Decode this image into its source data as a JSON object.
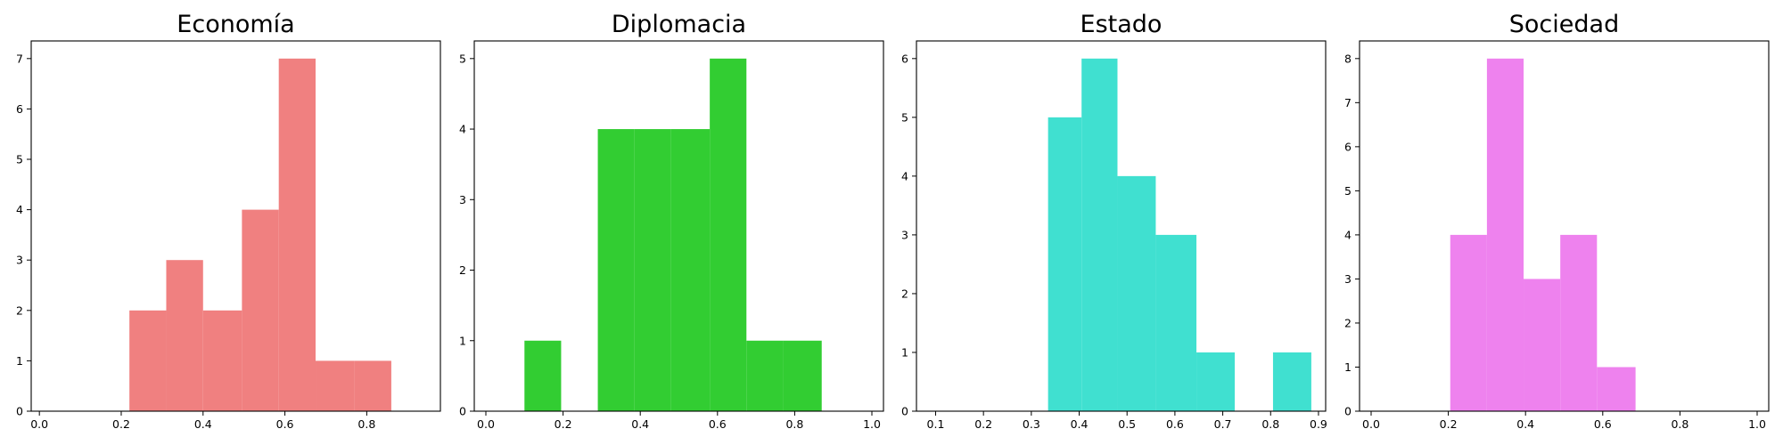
{
  "chart_data": [
    {
      "type": "bar",
      "title": "Economía",
      "color": "#F08080",
      "xlim": [
        -0.02,
        0.98
      ],
      "ylim": [
        0,
        7.35
      ],
      "xticks": [
        "0.0",
        "0.2",
        "0.4",
        "0.6",
        "0.8"
      ],
      "xtick_values": [
        0.0,
        0.2,
        0.4,
        0.6,
        0.8
      ],
      "yticks": [
        "0",
        "1",
        "2",
        "3",
        "4",
        "5",
        "6",
        "7"
      ],
      "ytick_values": [
        0,
        1,
        2,
        3,
        4,
        5,
        6,
        7
      ],
      "bins": [
        {
          "x0": 0.22,
          "x1": 0.31,
          "count": 2
        },
        {
          "x0": 0.31,
          "x1": 0.4,
          "count": 3
        },
        {
          "x0": 0.4,
          "x1": 0.495,
          "count": 2
        },
        {
          "x0": 0.495,
          "x1": 0.585,
          "count": 4
        },
        {
          "x0": 0.585,
          "x1": 0.675,
          "count": 7
        },
        {
          "x0": 0.675,
          "x1": 0.77,
          "count": 1
        },
        {
          "x0": 0.77,
          "x1": 0.86,
          "count": 1
        }
      ],
      "xlabel": "",
      "ylabel": ""
    },
    {
      "type": "bar",
      "title": "Diplomacia",
      "color": "#32CD32",
      "xlim": [
        -0.03,
        1.03
      ],
      "ylim": [
        0,
        5.25
      ],
      "xticks": [
        "0.0",
        "0.2",
        "0.4",
        "0.6",
        "0.8",
        "1.0"
      ],
      "xtick_values": [
        0.0,
        0.2,
        0.4,
        0.6,
        0.8,
        1.0
      ],
      "yticks": [
        "0",
        "1",
        "2",
        "3",
        "4",
        "5"
      ],
      "ytick_values": [
        0,
        1,
        2,
        3,
        4,
        5
      ],
      "bins": [
        {
          "x0": 0.1,
          "x1": 0.195,
          "count": 1
        },
        {
          "x0": 0.195,
          "x1": 0.29,
          "count": 0
        },
        {
          "x0": 0.29,
          "x1": 0.385,
          "count": 4
        },
        {
          "x0": 0.385,
          "x1": 0.48,
          "count": 4
        },
        {
          "x0": 0.48,
          "x1": 0.58,
          "count": 4
        },
        {
          "x0": 0.58,
          "x1": 0.675,
          "count": 5
        },
        {
          "x0": 0.675,
          "x1": 0.77,
          "count": 1
        },
        {
          "x0": 0.77,
          "x1": 0.87,
          "count": 1
        }
      ],
      "xlabel": "",
      "ylabel": ""
    },
    {
      "type": "bar",
      "title": "Estado",
      "color": "#40E0D0",
      "xlim": [
        0.06,
        0.915
      ],
      "ylim": [
        0,
        6.3
      ],
      "xticks": [
        "0.1",
        "0.2",
        "0.3",
        "0.4",
        "0.5",
        "0.6",
        "0.7",
        "0.8",
        "0.9"
      ],
      "xtick_values": [
        0.1,
        0.2,
        0.3,
        0.4,
        0.5,
        0.6,
        0.7,
        0.8,
        0.9
      ],
      "yticks": [
        "0",
        "1",
        "2",
        "3",
        "4",
        "5",
        "6"
      ],
      "ytick_values": [
        0,
        1,
        2,
        3,
        4,
        5,
        6
      ],
      "bins": [
        {
          "x0": 0.335,
          "x1": 0.405,
          "count": 5
        },
        {
          "x0": 0.405,
          "x1": 0.48,
          "count": 6
        },
        {
          "x0": 0.48,
          "x1": 0.56,
          "count": 4
        },
        {
          "x0": 0.56,
          "x1": 0.645,
          "count": 3
        },
        {
          "x0": 0.645,
          "x1": 0.725,
          "count": 1
        },
        {
          "x0": 0.725,
          "x1": 0.805,
          "count": 0
        },
        {
          "x0": 0.805,
          "x1": 0.885,
          "count": 1
        }
      ],
      "xlabel": "",
      "ylabel": ""
    },
    {
      "type": "bar",
      "title": "Sociedad",
      "color": "#EE82EE",
      "xlim": [
        -0.03,
        1.03
      ],
      "ylim": [
        0,
        8.4
      ],
      "xticks": [
        "0.0",
        "0.2",
        "0.4",
        "0.6",
        "0.8",
        "1.0"
      ],
      "xtick_values": [
        0.0,
        0.2,
        0.4,
        0.6,
        0.8,
        1.0
      ],
      "yticks": [
        "0",
        "1",
        "2",
        "3",
        "4",
        "5",
        "6",
        "7",
        "8"
      ],
      "ytick_values": [
        0,
        1,
        2,
        3,
        4,
        5,
        6,
        7,
        8
      ],
      "bins": [
        {
          "x0": 0.205,
          "x1": 0.3,
          "count": 4
        },
        {
          "x0": 0.3,
          "x1": 0.395,
          "count": 8
        },
        {
          "x0": 0.395,
          "x1": 0.49,
          "count": 3
        },
        {
          "x0": 0.49,
          "x1": 0.585,
          "count": 4
        },
        {
          "x0": 0.585,
          "x1": 0.685,
          "count": 1
        }
      ],
      "xlabel": "",
      "ylabel": ""
    }
  ]
}
